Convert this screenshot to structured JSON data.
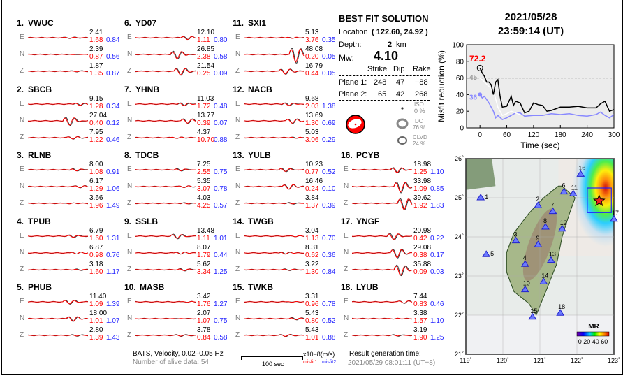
{
  "stations": [
    {
      "num": "1.",
      "name": "VWUC",
      "comps": [
        {
          "c": "E",
          "amp": "2.41",
          "m1": "1.68",
          "m2": "0.84"
        },
        {
          "c": "N",
          "amp": "2.39",
          "m1": "0.87",
          "m2": "0.56"
        },
        {
          "c": "Z",
          "amp": "1.87",
          "m1": "1.35",
          "m2": "0.87"
        }
      ]
    },
    {
      "num": "2.",
      "name": "SBCB",
      "comps": [
        {
          "c": "E",
          "amp": "9.15",
          "m1": "1.28",
          "m2": "0.34"
        },
        {
          "c": "N",
          "amp": "27.04",
          "m1": "0.40",
          "m2": "0.12"
        },
        {
          "c": "Z",
          "amp": "7.95",
          "m1": "1.22",
          "m2": "0.46"
        }
      ]
    },
    {
      "num": "3.",
      "name": "RLNB",
      "comps": [
        {
          "c": "E",
          "amp": "8.00",
          "m1": "1.08",
          "m2": "0.91"
        },
        {
          "c": "N",
          "amp": "6.17",
          "m1": "1.29",
          "m2": "1.06"
        },
        {
          "c": "Z",
          "amp": "3.66",
          "m1": "1.96",
          "m2": "1.49"
        }
      ]
    },
    {
      "num": "4.",
      "name": "TPUB",
      "comps": [
        {
          "c": "E",
          "amp": "6.79",
          "m1": "1.60",
          "m2": "1.31"
        },
        {
          "c": "N",
          "amp": "6.87",
          "m1": "0.98",
          "m2": "0.76"
        },
        {
          "c": "Z",
          "amp": "3.18",
          "m1": "1.60",
          "m2": "1.17"
        }
      ]
    },
    {
      "num": "5.",
      "name": "PHUB",
      "comps": [
        {
          "c": "E",
          "amp": "11.40",
          "m1": "1.09",
          "m2": "1.39"
        },
        {
          "c": "N",
          "amp": "18.00",
          "m1": "1.01",
          "m2": "1.07"
        },
        {
          "c": "Z",
          "amp": "2.80",
          "m1": "1.39",
          "m2": "1.43"
        }
      ]
    },
    {
      "num": "6.",
      "name": "YD07",
      "comps": [
        {
          "c": "E",
          "amp": "12.10",
          "m1": "1.11",
          "m2": "0.80"
        },
        {
          "c": "N",
          "amp": "26.85",
          "m1": "2.38",
          "m2": "0.58"
        },
        {
          "c": "Z",
          "amp": "21.54",
          "m1": "0.25",
          "m2": "0.09"
        }
      ]
    },
    {
      "num": "7.",
      "name": "YHNB",
      "comps": [
        {
          "c": "E",
          "amp": "11.03",
          "m1": "1.72",
          "m2": "0.48"
        },
        {
          "c": "N",
          "amp": "13.77",
          "m1": "0.39",
          "m2": "0.07"
        },
        {
          "c": "Z",
          "amp": "4.37",
          "m1": "10.70",
          "m2": "0.88"
        }
      ]
    },
    {
      "num": "8.",
      "name": "TDCB",
      "comps": [
        {
          "c": "E",
          "amp": "7.25",
          "m1": "2.55",
          "m2": "0.75"
        },
        {
          "c": "N",
          "amp": "5.35",
          "m1": "3.07",
          "m2": "0.78"
        },
        {
          "c": "Z",
          "amp": "4.03",
          "m1": "4.25",
          "m2": "0.57"
        }
      ]
    },
    {
      "num": "9.",
      "name": "SSLB",
      "comps": [
        {
          "c": "E",
          "amp": "13.48",
          "m1": "1.11",
          "m2": "1.01"
        },
        {
          "c": "N",
          "amp": "8.07",
          "m1": "1.79",
          "m2": "0.44"
        },
        {
          "c": "Z",
          "amp": "5.62",
          "m1": "3.34",
          "m2": "1.25"
        }
      ]
    },
    {
      "num": "10.",
      "name": "MASB",
      "comps": [
        {
          "c": "E",
          "amp": "3.42",
          "m1": "1.76",
          "m2": "1.27"
        },
        {
          "c": "N",
          "amp": "2.07",
          "m1": "1.07",
          "m2": "0.75"
        },
        {
          "c": "Z",
          "amp": "3.78",
          "m1": "0.84",
          "m2": "0.58"
        }
      ]
    },
    {
      "num": "11.",
      "name": "SXI1",
      "comps": [
        {
          "c": "E",
          "amp": "5.13",
          "m1": "3.76",
          "m2": "0.35"
        },
        {
          "c": "N",
          "amp": "48.08",
          "m1": "0.20",
          "m2": "0.05"
        },
        {
          "c": "Z",
          "amp": "16.79",
          "m1": "0.44",
          "m2": "0.05"
        }
      ]
    },
    {
      "num": "12.",
      "name": "NACB",
      "comps": [
        {
          "c": "E",
          "amp": "9.68",
          "m1": "2.03",
          "m2": "1.38"
        },
        {
          "c": "N",
          "amp": "13.69",
          "m1": "1.30",
          "m2": "0.69"
        },
        {
          "c": "Z",
          "amp": "5.03",
          "m1": "3.06",
          "m2": "0.29"
        }
      ]
    },
    {
      "num": "13.",
      "name": "YULB",
      "comps": [
        {
          "c": "E",
          "amp": "10.23",
          "m1": "0.77",
          "m2": "0.52"
        },
        {
          "c": "N",
          "amp": "16.46",
          "m1": "0.24",
          "m2": "0.10"
        },
        {
          "c": "Z",
          "amp": "3.84",
          "m1": "1.37",
          "m2": "0.39"
        }
      ]
    },
    {
      "num": "14.",
      "name": "TWGB",
      "comps": [
        {
          "c": "E",
          "amp": "3.04",
          "m1": "1.13",
          "m2": "0.70"
        },
        {
          "c": "N",
          "amp": "8.31",
          "m1": "0.62",
          "m2": "0.36"
        },
        {
          "c": "Z",
          "amp": "3.22",
          "m1": "1.30",
          "m2": "0.84"
        }
      ]
    },
    {
      "num": "15.",
      "name": "TWKB",
      "comps": [
        {
          "c": "E",
          "amp": "3.31",
          "m1": "0.96",
          "m2": "0.78"
        },
        {
          "c": "N",
          "amp": "5.43",
          "m1": "0.80",
          "m2": "0.52"
        },
        {
          "c": "Z",
          "amp": "5.43",
          "m1": "1.01",
          "m2": "0.88"
        }
      ]
    },
    {
      "num": "16.",
      "name": "PCYB",
      "comps": [
        {
          "c": "E",
          "amp": "18.98",
          "m1": "1.25",
          "m2": "1.10"
        },
        {
          "c": "N",
          "amp": "33.98",
          "m1": "1.09",
          "m2": "0.85"
        },
        {
          "c": "Z",
          "amp": "39.62",
          "m1": "1.92",
          "m2": "1.83"
        }
      ]
    },
    {
      "num": "17.",
      "name": "YNGF",
      "comps": [
        {
          "c": "E",
          "amp": "20.98",
          "m1": "0.42",
          "m2": "0.22"
        },
        {
          "c": "N",
          "amp": "29.08",
          "m1": "0.38",
          "m2": "0.17"
        },
        {
          "c": "Z",
          "amp": "35.88",
          "m1": "0.09",
          "m2": "0.03"
        }
      ]
    },
    {
      "num": "18.",
      "name": "LYUB",
      "comps": [
        {
          "c": "E",
          "amp": "7.44",
          "m1": "0.83",
          "m2": "0.46"
        },
        {
          "c": "N",
          "amp": "3.38",
          "m1": "1.57",
          "m2": "1.10"
        },
        {
          "c": "Z",
          "amp": "3.19",
          "m1": "1.90",
          "m2": "1.25"
        }
      ]
    }
  ],
  "solution": {
    "title": "BEST FIT SOLUTION",
    "location_label": "Location",
    "location_value": "( 122.60,  24.92 )",
    "depth_label": "Depth:",
    "depth_value": "2",
    "depth_unit": "km",
    "mw_label": "Mw:",
    "mw_value": "4.10",
    "headers": [
      "Strike",
      "Dip",
      "Rake"
    ],
    "planes": [
      {
        "label": "Plane 1:",
        "strike": "248",
        "dip": "47",
        "rake": "−88"
      },
      {
        "label": "Plane 2:",
        "strike": "65",
        "dip": "42",
        "rake": "268"
      }
    ],
    "iso_label": "ISO",
    "iso_value": "0 %",
    "dc_label": "DC",
    "dc_value": "76 %",
    "clvd_label": "CLVD",
    "clvd_value": "24 %"
  },
  "event": {
    "date": "2021/05/28",
    "time": "23:59:14  (UT)"
  },
  "footer": {
    "network": "BATS, Velocity, 0.02–0.05 Hz",
    "alive": "Number of alive data: 54",
    "scale": "100 sec",
    "units": "x10−8(m/s)",
    "misfit1": "misfit1",
    "misfit2": "misfit2",
    "gen_label": "Result generation time:",
    "gen_time": "2021/05/29 08:01:11 (UT+8)"
  },
  "colors": {
    "observed": "#000000",
    "synthetic": "#ff0000",
    "misfit1": "#ff0000",
    "misfit2": "#2222ff",
    "beachball": "#ff0000"
  },
  "chart_data": {
    "type": "line",
    "xlabel": "Time (sec)",
    "ylabel": "Misfit reduction (%)",
    "xlim": [
      -30,
      300
    ],
    "ylim": [
      0,
      100
    ],
    "xticks": [
      "0",
      "60",
      "120",
      "180",
      "240",
      "300"
    ],
    "yticks": [
      "0",
      "20",
      "40",
      "60",
      "80",
      "100"
    ],
    "threshold": 60,
    "annotations": {
      "best": "72.2",
      "white_start": "45",
      "blue_start": "36"
    },
    "series": [
      {
        "color": "#000000",
        "x": [
          0,
          5,
          10,
          15,
          20,
          25,
          30,
          35,
          40,
          45,
          50,
          60,
          70,
          75,
          80,
          90,
          100,
          110,
          120,
          130,
          140,
          150,
          160,
          180,
          200,
          220,
          240,
          260,
          270,
          280,
          290,
          300
        ],
        "y": [
          72,
          66,
          62,
          55,
          55,
          52,
          40,
          55,
          58,
          38,
          25,
          26,
          38,
          27,
          32,
          30,
          18,
          20,
          30,
          28,
          27,
          20,
          21,
          25,
          25,
          26,
          24,
          24,
          29,
          32,
          20,
          22
        ]
      },
      {
        "color": "#ffffff",
        "x": [
          0,
          5,
          10,
          20,
          30,
          40,
          50,
          60,
          70,
          80,
          90
        ],
        "y": [
          60,
          58,
          55,
          50,
          45,
          25,
          15,
          17,
          20,
          18,
          16
        ]
      },
      {
        "color": "#8888ff",
        "x": [
          0,
          5,
          10,
          20,
          30,
          35,
          40,
          50,
          60,
          70,
          80,
          90,
          100,
          120,
          140,
          160,
          180,
          200,
          220,
          240,
          260,
          270,
          280,
          290,
          300
        ],
        "y": [
          40,
          36,
          38,
          30,
          20,
          12,
          15,
          10,
          12,
          15,
          18,
          18,
          14,
          15,
          15,
          17,
          16,
          17,
          15,
          14,
          16,
          19,
          15,
          12,
          16
        ]
      }
    ]
  },
  "map": {
    "lat_ticks": [
      "21˚",
      "22˚",
      "23˚",
      "24˚",
      "25˚",
      "26˚"
    ],
    "lon_ticks": [
      "119˚",
      "120˚",
      "121˚",
      "122˚",
      "123˚"
    ],
    "station_labels": [
      "1",
      "2",
      "3",
      "4",
      "5",
      "6",
      "7",
      "8",
      "9",
      "10",
      "11",
      "12",
      "13",
      "14",
      "15",
      "16",
      "17",
      "18"
    ],
    "colorbar_title": "MR",
    "colorbar_ticks": "0 20 40 60"
  }
}
